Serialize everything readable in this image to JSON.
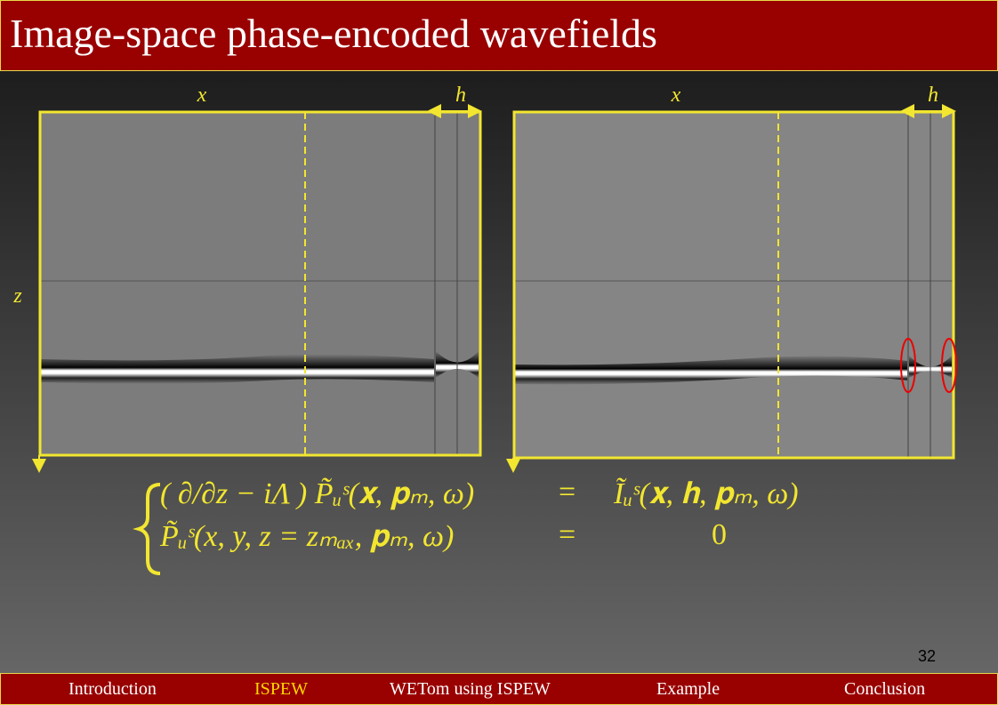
{
  "header": {
    "title": "Image-space phase-encoded wavefields"
  },
  "figure": {
    "x_label": "x",
    "h_label": "h",
    "z_label": "z"
  },
  "equation": {
    "rows": [
      {
        "lhs": "( ∂/∂z − iΛ ) P̃ᵤˢ(𝐱, 𝐩ₘ, ω)",
        "eq": "=",
        "rhs": "Ĩᵤˢ(𝐱, 𝐡, 𝐩ₘ, ω)"
      },
      {
        "lhs": "P̃ᵤˢ(x, y, z = zₘₐₓ, 𝐩ₘ, ω)",
        "eq": "=",
        "rhs": "0"
      }
    ]
  },
  "page_number": "32",
  "nav": {
    "items": [
      "Introduction",
      "ISPEW",
      "WETom using ISPEW",
      "Example",
      "Conclusion"
    ],
    "active": 1
  }
}
